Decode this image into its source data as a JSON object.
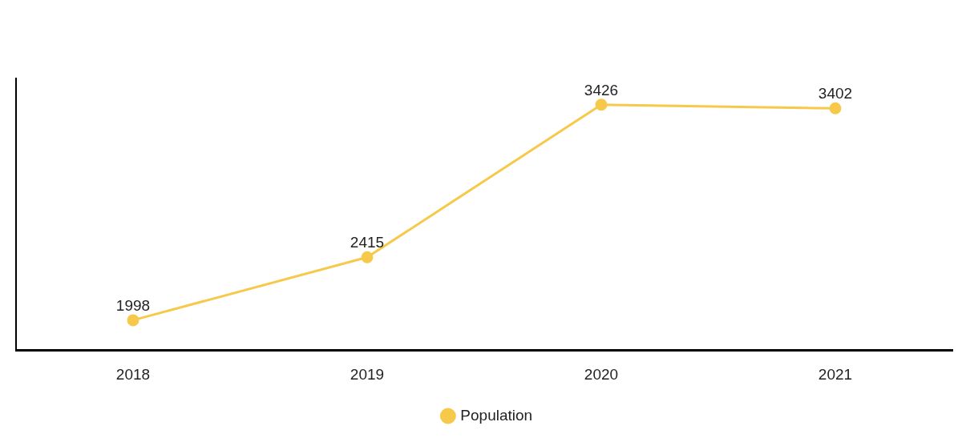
{
  "chart_data": {
    "type": "line",
    "categories": [
      "2018",
      "2019",
      "2020",
      "2021"
    ],
    "series": [
      {
        "name": "Population",
        "color": "#f7c94b",
        "values": [
          1998,
          2415,
          3426,
          3402
        ]
      }
    ],
    "data_labels": true,
    "legend": "bottom",
    "grid": false,
    "marker": "circle",
    "tick_labels": "x"
  }
}
